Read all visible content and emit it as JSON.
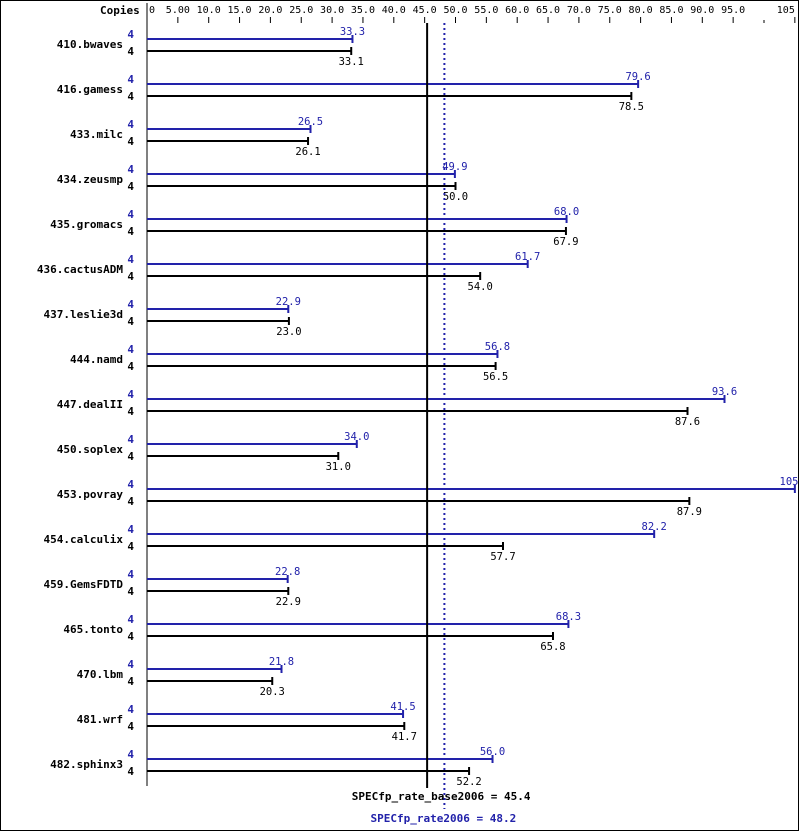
{
  "chart_data": {
    "type": "bar",
    "orientation": "horizontal",
    "header_label": "Copies",
    "x_ticks": [
      "0",
      "5.00",
      "10.0",
      "15.0",
      "20.0",
      "25.0",
      "30.0",
      "35.0",
      "40.0",
      "45.0",
      "50.0",
      "55.0",
      "60.0",
      "65.0",
      "70.0",
      "75.0",
      "80.0",
      "85.0",
      "90.0",
      "95.0",
      "105"
    ],
    "x_tick_values": [
      0,
      5,
      10,
      15,
      20,
      25,
      30,
      35,
      40,
      45,
      50,
      55,
      60,
      65,
      70,
      75,
      80,
      85,
      90,
      95,
      105
    ],
    "xlim": [
      0,
      105
    ],
    "grid": false,
    "colors": {
      "peak": "#2222aa",
      "base": "#000000"
    },
    "categories": [
      "410.bwaves",
      "416.gamess",
      "433.milc",
      "434.zeusmp",
      "435.gromacs",
      "436.cactusADM",
      "437.leslie3d",
      "444.namd",
      "447.dealII",
      "450.soplex",
      "453.povray",
      "454.calculix",
      "459.GemsFDTD",
      "465.tonto",
      "470.lbm",
      "481.wrf",
      "482.sphinx3"
    ],
    "series": [
      {
        "key": "peak",
        "copies": [
          "4",
          "4",
          "4",
          "4",
          "4",
          "4",
          "4",
          "4",
          "4",
          "4",
          "4",
          "4",
          "4",
          "4",
          "4",
          "4",
          "4"
        ],
        "values": [
          33.3,
          79.6,
          26.5,
          49.9,
          68.0,
          61.7,
          22.9,
          56.8,
          93.6,
          34.0,
          105,
          82.2,
          22.8,
          68.3,
          21.8,
          41.5,
          56.0
        ],
        "labels": [
          "33.3",
          "79.6",
          "26.5",
          "49.9",
          "68.0",
          "61.7",
          "22.9",
          "56.8",
          "93.6",
          "34.0",
          "105",
          "82.2",
          "22.8",
          "68.3",
          "21.8",
          "41.5",
          "56.0"
        ]
      },
      {
        "key": "base",
        "copies": [
          "4",
          "4",
          "4",
          "4",
          "4",
          "4",
          "4",
          "4",
          "4",
          "4",
          "4",
          "4",
          "4",
          "4",
          "4",
          "4",
          "4"
        ],
        "values": [
          33.1,
          78.5,
          26.1,
          50.0,
          67.9,
          54.0,
          23.0,
          56.5,
          87.6,
          31.0,
          87.9,
          57.7,
          22.9,
          65.8,
          20.3,
          41.7,
          52.2
        ],
        "labels": [
          "33.1",
          "78.5",
          "26.1",
          "50.0",
          "67.9",
          "54.0",
          "23.0",
          "56.5",
          "87.6",
          "31.0",
          "87.9",
          "57.7",
          "22.9",
          "65.8",
          "20.3",
          "41.7",
          "52.2"
        ]
      }
    ],
    "reference_lines": [
      {
        "key": "base",
        "label": "SPECfp_rate_base2006 = 45.4",
        "value": 45.4,
        "style": "solid"
      },
      {
        "key": "peak",
        "label": "SPECfp_rate2006 = 48.2",
        "value": 48.2,
        "style": "dotted"
      }
    ]
  }
}
